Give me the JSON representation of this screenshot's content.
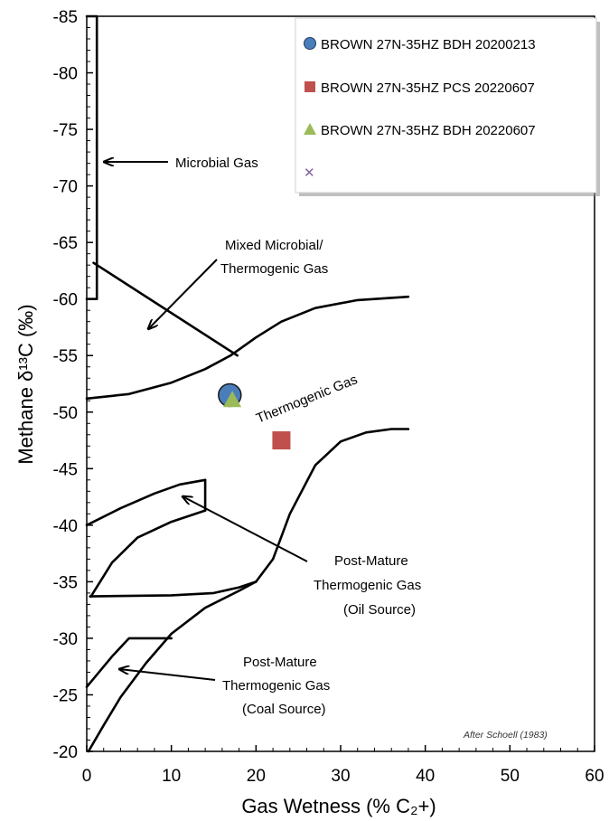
{
  "chart_data": {
    "type": "scatter",
    "xlabel": "Gas Wetness (% C₂+)",
    "ylabel": "Methane δ¹³C (‰)",
    "xlim": [
      0,
      60
    ],
    "ylim": [
      -85,
      -20
    ],
    "x_ticks": [
      0,
      10,
      20,
      30,
      40,
      50,
      60
    ],
    "y_ticks": [
      -85,
      -80,
      -75,
      -70,
      -65,
      -60,
      -55,
      -50,
      -45,
      -40,
      -35,
      -30,
      -25,
      -20
    ],
    "y_reversed": true,
    "grid": false,
    "legend_position": "top-right",
    "series": [
      {
        "name": "BROWN 27N-35HZ BDH 20200213",
        "marker": "circle",
        "color": "#4a7ebb",
        "points": [
          {
            "x": 16.9,
            "y": -51.5
          }
        ]
      },
      {
        "name": "BROWN 27N-35HZ PCS 20220607",
        "marker": "square",
        "color": "#c0504d",
        "points": [
          {
            "x": 23.0,
            "y": -47.5
          }
        ]
      },
      {
        "name": "BROWN 27N-35HZ BDH 20220607",
        "marker": "triangle",
        "color": "#9bbb59",
        "points": [
          {
            "x": 17.2,
            "y": -51.0
          }
        ]
      },
      {
        "name": "",
        "marker": "x",
        "color": "#8064a2",
        "points": []
      }
    ],
    "region_labels": {
      "microbial": "Microbial Gas",
      "mixed_line1": "Mixed Microbial/",
      "mixed_line2": "Thermogenic Gas",
      "thermogenic": "Thermogenic Gas",
      "post_oil_line1": "Post-Mature",
      "post_oil_line2": "Thermogenic Gas",
      "post_oil_line3": "(Oil Source)",
      "post_coal_line1": "Post-Mature",
      "post_coal_line2": "Thermogenic Gas",
      "post_coal_line3": "(Coal Source)"
    },
    "boundary_curves": [
      {
        "name": "microbial-thermogenic-boundary",
        "points": [
          [
            0,
            -51.2
          ],
          [
            5,
            -51.6
          ],
          [
            10,
            -52.6
          ],
          [
            14,
            -53.8
          ],
          [
            17,
            -55.0
          ],
          [
            20,
            -56.6
          ],
          [
            23,
            -58.0
          ],
          [
            27,
            -59.2
          ],
          [
            32,
            -59.9
          ],
          [
            38,
            -60.2
          ]
        ]
      },
      {
        "name": "mixed-zone-diagonal",
        "points": [
          [
            0.8,
            -63.2
          ],
          [
            17.8,
            -55.0
          ]
        ]
      },
      {
        "name": "microbial-zone-box",
        "points": [
          [
            0,
            -85
          ],
          [
            1.2,
            -85
          ],
          [
            1.2,
            -60
          ],
          [
            0,
            -60
          ]
        ]
      },
      {
        "name": "oil-source-box-top",
        "points": [
          [
            0,
            -40
          ],
          [
            4,
            -41.5
          ],
          [
            8,
            -42.8
          ],
          [
            11,
            -43.6
          ],
          [
            14,
            -44.0
          ]
        ]
      },
      {
        "name": "oil-source-box-right",
        "points": [
          [
            14,
            -44.0
          ],
          [
            14,
            -41.3
          ]
        ]
      },
      {
        "name": "oil-source-box-lower",
        "points": [
          [
            0.5,
            -33.7
          ],
          [
            3,
            -36.7
          ],
          [
            6,
            -38.9
          ],
          [
            10,
            -40.3
          ],
          [
            14,
            -41.3
          ]
        ]
      },
      {
        "name": "oil-coal-divider",
        "points": [
          [
            0.4,
            -33.7
          ],
          [
            10,
            -33.8
          ],
          [
            15,
            -34.0
          ],
          [
            18,
            -34.5
          ],
          [
            20,
            -35.0
          ]
        ]
      },
      {
        "name": "thermogenic-lower-boundary",
        "points": [
          [
            20,
            -35.0
          ],
          [
            22,
            -37.0
          ],
          [
            24,
            -41.0
          ],
          [
            27,
            -45.3
          ],
          [
            30,
            -47.4
          ],
          [
            33,
            -48.2
          ],
          [
            36,
            -48.5
          ],
          [
            38,
            -48.5
          ]
        ]
      },
      {
        "name": "coal-source-upper-boundary",
        "points": [
          [
            0.2,
            -20
          ],
          [
            2,
            -22.3
          ],
          [
            4,
            -24.8
          ],
          [
            7,
            -27.8
          ],
          [
            10,
            -30.4
          ],
          [
            14,
            -32.7
          ],
          [
            18,
            -34.2
          ],
          [
            20,
            -35.0
          ]
        ]
      },
      {
        "name": "coal-source-box",
        "points": [
          [
            0,
            -25.7
          ],
          [
            3,
            -28.4
          ],
          [
            5,
            -30.0
          ],
          [
            10,
            -30.0
          ]
        ]
      }
    ],
    "credit": "After Schoell (1983)"
  }
}
